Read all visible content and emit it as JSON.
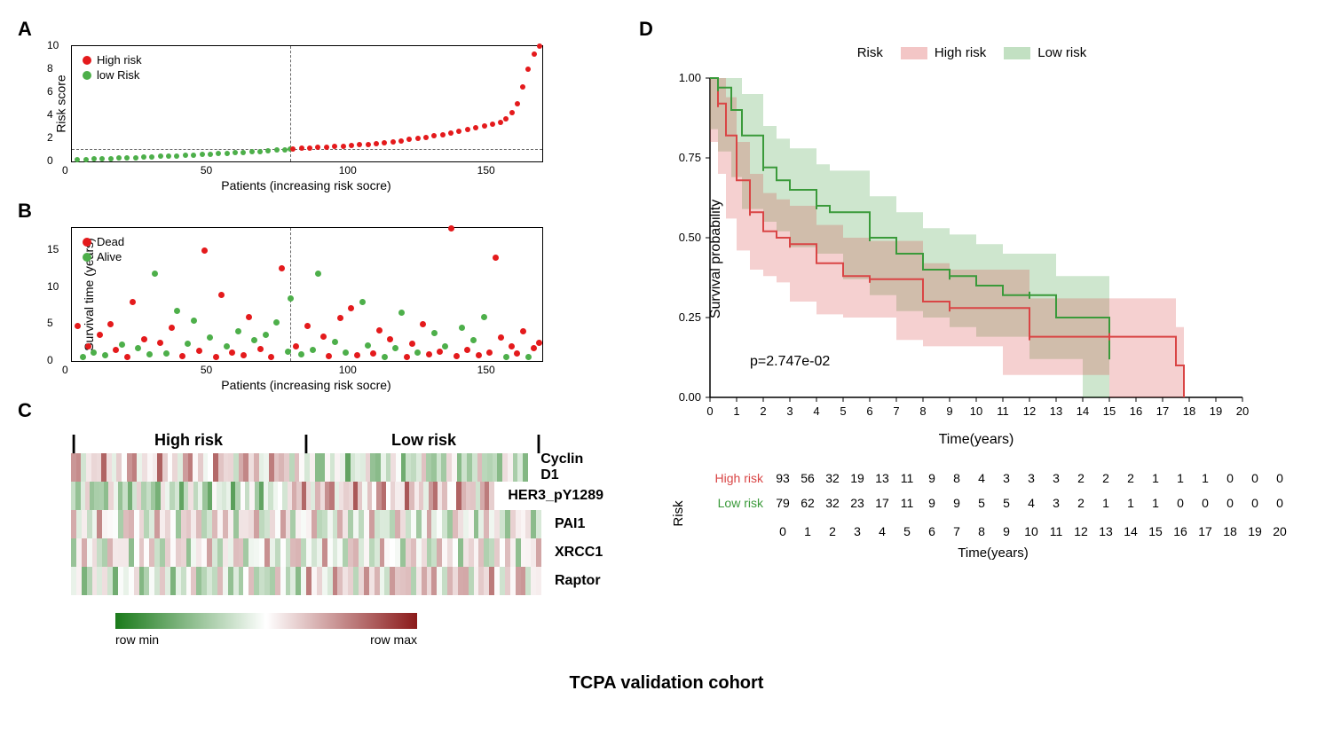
{
  "cohort_title": "TCPA validation cohort",
  "panelA": {
    "label": "A",
    "type": "scatter",
    "ylabel": "Risk score",
    "xlabel": "Patients (increasing risk socre)",
    "xlim": [
      0,
      170
    ],
    "ylim": [
      0,
      10
    ],
    "xticks": [
      0,
      50,
      100,
      150
    ],
    "yticks": [
      0,
      2,
      4,
      6,
      8,
      10
    ],
    "cutoff_x": 79,
    "cutoff_y": 1.1,
    "legend": [
      {
        "label": "High risk",
        "color": "#e41a1c"
      },
      {
        "label": "low Risk",
        "color": "#4daf4a"
      }
    ],
    "colors": {
      "high": "#e41a1c",
      "low": "#4daf4a"
    },
    "points_low": [
      [
        2,
        0.15
      ],
      [
        5,
        0.18
      ],
      [
        8,
        0.2
      ],
      [
        11,
        0.22
      ],
      [
        14,
        0.25
      ],
      [
        17,
        0.28
      ],
      [
        20,
        0.3
      ],
      [
        23,
        0.33
      ],
      [
        26,
        0.36
      ],
      [
        29,
        0.4
      ],
      [
        32,
        0.43
      ],
      [
        35,
        0.46
      ],
      [
        38,
        0.5
      ],
      [
        41,
        0.53
      ],
      [
        44,
        0.57
      ],
      [
        47,
        0.6
      ],
      [
        50,
        0.64
      ],
      [
        53,
        0.68
      ],
      [
        56,
        0.72
      ],
      [
        59,
        0.76
      ],
      [
        62,
        0.8
      ],
      [
        65,
        0.84
      ],
      [
        68,
        0.88
      ],
      [
        71,
        0.93
      ],
      [
        74,
        0.98
      ],
      [
        77,
        1.03
      ],
      [
        79,
        1.08
      ]
    ],
    "points_high": [
      [
        80,
        1.1
      ],
      [
        83,
        1.13
      ],
      [
        86,
        1.16
      ],
      [
        89,
        1.2
      ],
      [
        92,
        1.24
      ],
      [
        95,
        1.28
      ],
      [
        98,
        1.33
      ],
      [
        101,
        1.38
      ],
      [
        104,
        1.44
      ],
      [
        107,
        1.5
      ],
      [
        110,
        1.57
      ],
      [
        113,
        1.64
      ],
      [
        116,
        1.72
      ],
      [
        119,
        1.8
      ],
      [
        122,
        1.9
      ],
      [
        125,
        2.0
      ],
      [
        128,
        2.1
      ],
      [
        131,
        2.2
      ],
      [
        134,
        2.3
      ],
      [
        137,
        2.45
      ],
      [
        140,
        2.6
      ],
      [
        143,
        2.75
      ],
      [
        146,
        2.9
      ],
      [
        149,
        3.05
      ],
      [
        152,
        3.2
      ],
      [
        155,
        3.4
      ],
      [
        157,
        3.7
      ],
      [
        159,
        4.2
      ],
      [
        161,
        5.0
      ],
      [
        163,
        6.5
      ],
      [
        165,
        8.0
      ],
      [
        167,
        9.3
      ],
      [
        169,
        10.0
      ]
    ]
  },
  "panelB": {
    "label": "B",
    "type": "scatter",
    "ylabel": "Survival time (years)",
    "xlabel": "Patients (increasing risk socre)",
    "xlim": [
      0,
      170
    ],
    "ylim": [
      0,
      18
    ],
    "xticks": [
      0,
      50,
      100,
      150
    ],
    "yticks": [
      0,
      5,
      10,
      15
    ],
    "cutoff_x": 79,
    "legend": [
      {
        "label": "Dead",
        "color": "#e41a1c"
      },
      {
        "label": "Alive",
        "color": "#4daf4a"
      }
    ],
    "colors": {
      "dead": "#e41a1c",
      "alive": "#4daf4a"
    },
    "points": [
      [
        2,
        4.8,
        "d"
      ],
      [
        4,
        0.5,
        "a"
      ],
      [
        6,
        2.0,
        "d"
      ],
      [
        8,
        1.2,
        "a"
      ],
      [
        10,
        3.5,
        "d"
      ],
      [
        12,
        0.8,
        "a"
      ],
      [
        14,
        5.0,
        "d"
      ],
      [
        16,
        1.5,
        "d"
      ],
      [
        18,
        2.2,
        "a"
      ],
      [
        20,
        0.6,
        "d"
      ],
      [
        22,
        8.0,
        "d"
      ],
      [
        24,
        1.8,
        "a"
      ],
      [
        26,
        3.0,
        "d"
      ],
      [
        28,
        0.9,
        "a"
      ],
      [
        30,
        11.8,
        "a"
      ],
      [
        32,
        2.5,
        "d"
      ],
      [
        34,
        1.0,
        "a"
      ],
      [
        36,
        4.5,
        "d"
      ],
      [
        38,
        6.8,
        "a"
      ],
      [
        40,
        0.7,
        "d"
      ],
      [
        42,
        2.3,
        "a"
      ],
      [
        44,
        5.5,
        "a"
      ],
      [
        46,
        1.4,
        "d"
      ],
      [
        48,
        15.0,
        "d"
      ],
      [
        50,
        3.2,
        "a"
      ],
      [
        52,
        0.5,
        "d"
      ],
      [
        54,
        9.0,
        "d"
      ],
      [
        56,
        2.0,
        "a"
      ],
      [
        58,
        1.1,
        "d"
      ],
      [
        60,
        4.0,
        "a"
      ],
      [
        62,
        0.8,
        "d"
      ],
      [
        64,
        6.0,
        "d"
      ],
      [
        66,
        2.8,
        "a"
      ],
      [
        68,
        1.6,
        "d"
      ],
      [
        70,
        3.5,
        "a"
      ],
      [
        72,
        0.6,
        "d"
      ],
      [
        74,
        5.2,
        "a"
      ],
      [
        76,
        12.5,
        "d"
      ],
      [
        78,
        1.3,
        "a"
      ],
      [
        79,
        8.5,
        "a"
      ],
      [
        81,
        2.0,
        "d"
      ],
      [
        83,
        0.9,
        "a"
      ],
      [
        85,
        4.8,
        "d"
      ],
      [
        87,
        1.5,
        "a"
      ],
      [
        89,
        11.8,
        "a"
      ],
      [
        91,
        3.3,
        "d"
      ],
      [
        93,
        0.7,
        "d"
      ],
      [
        95,
        2.6,
        "a"
      ],
      [
        97,
        5.8,
        "d"
      ],
      [
        99,
        1.2,
        "a"
      ],
      [
        101,
        7.2,
        "d"
      ],
      [
        103,
        0.8,
        "d"
      ],
      [
        105,
        8.0,
        "a"
      ],
      [
        107,
        2.1,
        "a"
      ],
      [
        109,
        1.0,
        "d"
      ],
      [
        111,
        4.2,
        "d"
      ],
      [
        113,
        0.5,
        "a"
      ],
      [
        115,
        3.0,
        "d"
      ],
      [
        117,
        1.7,
        "a"
      ],
      [
        119,
        6.5,
        "a"
      ],
      [
        121,
        0.6,
        "d"
      ],
      [
        123,
        2.4,
        "d"
      ],
      [
        125,
        1.1,
        "a"
      ],
      [
        127,
        5.0,
        "d"
      ],
      [
        129,
        0.9,
        "d"
      ],
      [
        131,
        3.8,
        "a"
      ],
      [
        133,
        1.3,
        "d"
      ],
      [
        135,
        2.0,
        "a"
      ],
      [
        137,
        18.0,
        "d"
      ],
      [
        139,
        0.7,
        "d"
      ],
      [
        141,
        4.5,
        "a"
      ],
      [
        143,
        1.5,
        "d"
      ],
      [
        145,
        2.8,
        "a"
      ],
      [
        147,
        0.8,
        "d"
      ],
      [
        149,
        6.0,
        "a"
      ],
      [
        151,
        1.2,
        "d"
      ],
      [
        153,
        14.0,
        "d"
      ],
      [
        155,
        3.2,
        "d"
      ],
      [
        157,
        0.5,
        "a"
      ],
      [
        159,
        2.0,
        "d"
      ],
      [
        161,
        1.0,
        "d"
      ],
      [
        163,
        4.0,
        "d"
      ],
      [
        165,
        0.6,
        "a"
      ],
      [
        167,
        1.8,
        "d"
      ],
      [
        169,
        2.5,
        "d"
      ]
    ]
  },
  "panelC": {
    "label": "C",
    "type": "heatmap",
    "group_labels": [
      "High risk",
      "Low risk"
    ],
    "split_at": 0.5,
    "genes": [
      "Cyclin D1",
      "HER3_pY1289",
      "PAI1",
      "XRCC1",
      "Raptor"
    ],
    "gradient_colors": [
      "#1a7a1a",
      "#ffffff",
      "#8b1a1a"
    ],
    "gradient_labels": [
      "row min",
      "row max"
    ],
    "n_cols": 90
  },
  "panelD": {
    "label": "D",
    "type": "kaplan-meier",
    "ylabel": "Survival probability",
    "xlabel": "Time(years)",
    "xlim": [
      0,
      20
    ],
    "ylim": [
      0,
      1
    ],
    "xticks": [
      0,
      1,
      2,
      3,
      4,
      5,
      6,
      7,
      8,
      9,
      10,
      11,
      12,
      13,
      14,
      15,
      16,
      17,
      18,
      19,
      20
    ],
    "yticks": [
      0,
      0.25,
      0.5,
      0.75,
      1.0
    ],
    "yticks_labels": [
      "0.00",
      "0.25",
      "0.50",
      "0.75",
      "1.00"
    ],
    "pvalue": "p=2.747e-02",
    "legend_title": "Risk",
    "legend": [
      {
        "label": "High risk",
        "color": "#d94545"
      },
      {
        "label": "Low risk",
        "color": "#3a9a3a"
      }
    ],
    "high_curve": [
      [
        0,
        1.0
      ],
      [
        0.3,
        0.92
      ],
      [
        0.6,
        0.82
      ],
      [
        1,
        0.68
      ],
      [
        1.5,
        0.58
      ],
      [
        2,
        0.52
      ],
      [
        2.5,
        0.5
      ],
      [
        3,
        0.48
      ],
      [
        4,
        0.42
      ],
      [
        5,
        0.38
      ],
      [
        6,
        0.37
      ],
      [
        7,
        0.37
      ],
      [
        8,
        0.3
      ],
      [
        9,
        0.28
      ],
      [
        10,
        0.28
      ],
      [
        11,
        0.28
      ],
      [
        12,
        0.19
      ],
      [
        13,
        0.19
      ],
      [
        14,
        0.19
      ],
      [
        15,
        0.19
      ],
      [
        17.5,
        0.1
      ],
      [
        17.8,
        0.0
      ]
    ],
    "low_curve": [
      [
        0,
        1.0
      ],
      [
        0.3,
        0.97
      ],
      [
        0.8,
        0.9
      ],
      [
        1.2,
        0.82
      ],
      [
        2,
        0.72
      ],
      [
        2.5,
        0.68
      ],
      [
        3,
        0.65
      ],
      [
        4,
        0.6
      ],
      [
        4.5,
        0.58
      ],
      [
        5,
        0.58
      ],
      [
        6,
        0.5
      ],
      [
        7,
        0.45
      ],
      [
        8,
        0.4
      ],
      [
        9,
        0.38
      ],
      [
        10,
        0.35
      ],
      [
        11,
        0.32
      ],
      [
        12,
        0.32
      ],
      [
        13,
        0.25
      ],
      [
        14,
        0.25
      ],
      [
        15,
        0.13
      ]
    ],
    "high_ci": {
      "color": "#d94545",
      "opacity": 0.25
    },
    "low_ci": {
      "color": "#3a9a3a",
      "opacity": 0.25
    },
    "risk_table": {
      "ylabel": "Risk",
      "xlabel": "Time(years)",
      "rows": [
        {
          "label": "High risk",
          "color": "#d94545",
          "values": [
            93,
            56,
            32,
            19,
            13,
            11,
            9,
            8,
            4,
            3,
            3,
            3,
            2,
            2,
            2,
            1,
            1,
            1,
            0,
            0,
            0
          ]
        },
        {
          "label": "Low risk",
          "color": "#3a9a3a",
          "values": [
            79,
            62,
            32,
            23,
            17,
            11,
            9,
            9,
            5,
            5,
            4,
            3,
            2,
            1,
            1,
            1,
            0,
            0,
            0,
            0,
            0
          ]
        }
      ]
    }
  }
}
